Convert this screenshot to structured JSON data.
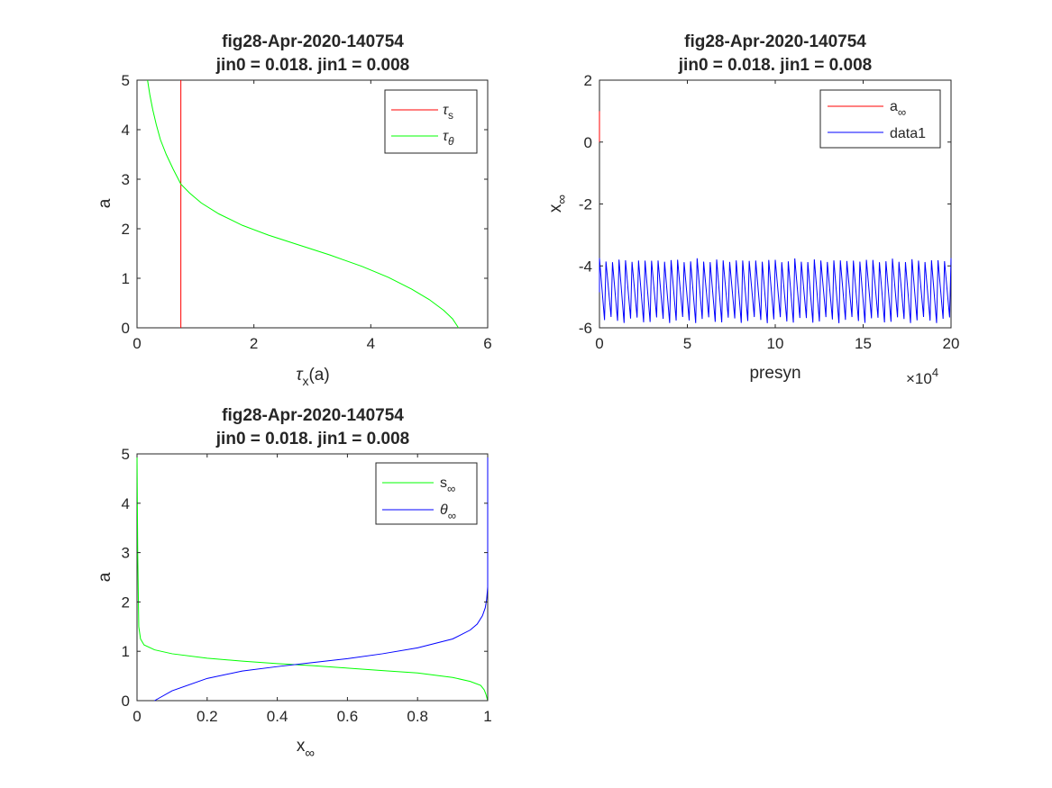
{
  "figure": {
    "background": "#ffffff",
    "axes_color": "#262626"
  },
  "chart_data": [
    {
      "type": "line",
      "title": "fig28-Apr-2020-140754",
      "subtitle": "jin0 = 0.018. jin1 = 0.008",
      "xlabel": "τx(a)",
      "ylabel": "a",
      "xlim": [
        0,
        6
      ],
      "ylim": [
        0,
        5
      ],
      "xticks": [
        "0",
        "2",
        "4",
        "6"
      ],
      "yticks": [
        "0",
        "1",
        "2",
        "3",
        "4",
        "5"
      ],
      "grid": false,
      "legend_position": "top-right",
      "series": [
        {
          "name": "τs",
          "color": "#ff0000",
          "x": [
            0.75,
            0.75
          ],
          "y": [
            0,
            5
          ]
        },
        {
          "name": "τθ",
          "color": "#00ff00",
          "x": [
            0.18,
            0.22,
            0.27,
            0.33,
            0.4,
            0.5,
            0.62,
            0.75,
            0.9,
            1.1,
            1.4,
            1.8,
            2.25,
            2.75,
            3.3,
            3.85,
            4.3,
            4.7,
            5.0,
            5.25,
            5.4,
            5.5
          ],
          "y": [
            5.0,
            4.7,
            4.4,
            4.1,
            3.8,
            3.5,
            3.2,
            2.9,
            2.72,
            2.52,
            2.3,
            2.07,
            1.87,
            1.68,
            1.47,
            1.24,
            1.02,
            0.78,
            0.57,
            0.35,
            0.18,
            0.0
          ]
        }
      ]
    },
    {
      "type": "line",
      "title": "fig28-Apr-2020-140754",
      "subtitle": "jin0 = 0.018. jin1 = 0.008",
      "xlabel": "presyn",
      "ylabel": "x∞",
      "xlim": [
        0,
        200000
      ],
      "ylim": [
        -6,
        2
      ],
      "xticks": [
        "0",
        "5",
        "10",
        "15",
        "20"
      ],
      "yticks": [
        "-6",
        "-4",
        "-2",
        "0",
        "2"
      ],
      "x_exponent_label": "×10",
      "x_exponent": "4",
      "grid": false,
      "legend_position": "top-right",
      "series": [
        {
          "name": "a∞",
          "color": "#ff0000",
          "x": [
            0,
            0
          ],
          "y": [
            0.0,
            1.0
          ]
        },
        {
          "name": "data1",
          "color": "#0000ff",
          "sawtooth": {
            "x_start": 0,
            "x_end": 200000,
            "cycles": 54,
            "low": -5.75,
            "high": -3.75,
            "low_jitter": 0.1,
            "high_jitter": 0.08
          }
        }
      ]
    },
    {
      "type": "line",
      "title": "fig28-Apr-2020-140754",
      "subtitle": "jin0 = 0.018. jin1 = 0.008",
      "xlabel": "x∞",
      "ylabel": "a",
      "xlim": [
        0,
        1
      ],
      "ylim": [
        0,
        5
      ],
      "xticks": [
        "0",
        "0.2",
        "0.4",
        "0.6",
        "0.8",
        "1"
      ],
      "yticks": [
        "0",
        "1",
        "2",
        "3",
        "4",
        "5"
      ],
      "grid": false,
      "legend_position": "top-right",
      "series": [
        {
          "name": "s∞",
          "color": "#00ff00",
          "x": [
            0.0,
            0.002,
            0.005,
            0.01,
            0.02,
            0.05,
            0.1,
            0.2,
            0.3,
            0.4,
            0.5,
            0.6,
            0.7,
            0.8,
            0.9,
            0.95,
            0.98,
            0.99,
            0.995,
            1.0
          ],
          "y": [
            5.0,
            3.0,
            1.5,
            1.25,
            1.13,
            1.03,
            0.95,
            0.86,
            0.8,
            0.75,
            0.71,
            0.66,
            0.61,
            0.56,
            0.47,
            0.39,
            0.31,
            0.22,
            0.13,
            0.0
          ]
        },
        {
          "name": "θ∞",
          "color": "#0000ff",
          "x": [
            0.05,
            0.1,
            0.2,
            0.3,
            0.4,
            0.5,
            0.6,
            0.7,
            0.8,
            0.9,
            0.95,
            0.97,
            0.985,
            0.993,
            0.997,
            1.0,
            1.0
          ],
          "y": [
            0.0,
            0.2,
            0.45,
            0.6,
            0.69,
            0.77,
            0.85,
            0.95,
            1.07,
            1.25,
            1.43,
            1.55,
            1.72,
            1.88,
            2.05,
            2.3,
            5.0
          ]
        }
      ]
    }
  ]
}
